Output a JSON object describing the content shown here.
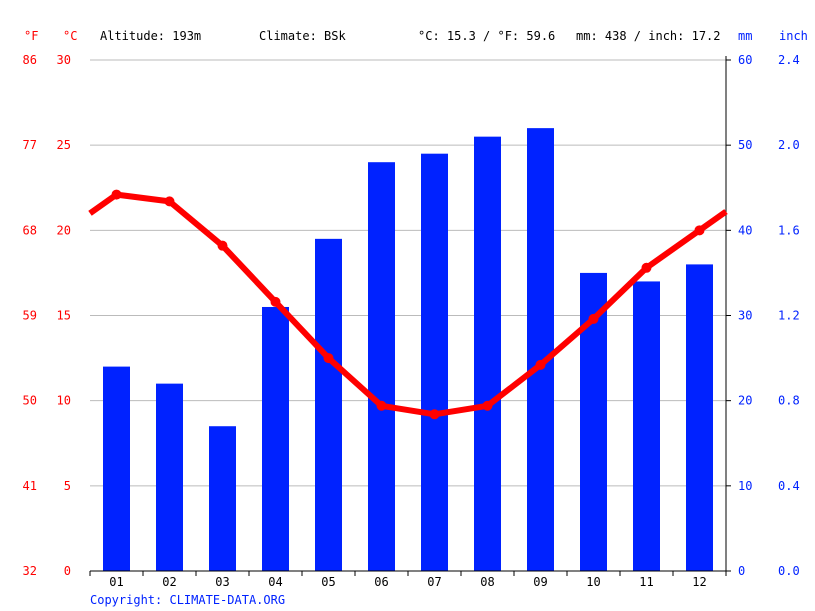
{
  "header": {
    "unit_f": "°F",
    "unit_c": "°C",
    "altitude": "Altitude: 193m",
    "climate": "Climate: BSk",
    "avg_temp": "°C: 15.3 / °F: 59.6",
    "precip_total": "mm: 438 / inch: 17.2",
    "unit_mm": "mm",
    "unit_inch": "inch"
  },
  "footer": {
    "copyright": "Copyright: CLIMATE-DATA.ORG"
  },
  "colors": {
    "temperature": "#ff0000",
    "precipitation": "#0022ff",
    "grid": "#bbbbbb",
    "axis": "#000000"
  },
  "chart_data": {
    "type": "bar",
    "categories": [
      "01",
      "02",
      "03",
      "04",
      "05",
      "06",
      "07",
      "08",
      "09",
      "10",
      "11",
      "12"
    ],
    "series": [
      {
        "type": "bar",
        "axis": "right",
        "values": [
          24,
          22,
          17,
          31,
          39,
          48,
          49,
          51,
          52,
          35,
          34,
          36
        ]
      },
      {
        "type": "line",
        "axis": "left",
        "values": [
          22.1,
          21.7,
          19.1,
          15.8,
          12.5,
          9.7,
          9.2,
          9.7,
          12.1,
          14.8,
          17.8,
          20.0
        ]
      }
    ],
    "line_ends": [
      21.0,
      21.1
    ],
    "left_axis": {
      "ylim": [
        0,
        30
      ],
      "ticks_c": [
        "0",
        "5",
        "10",
        "15",
        "20",
        "25",
        "30"
      ],
      "ticks_f": [
        "32",
        "41",
        "50",
        "59",
        "68",
        "77",
        "86"
      ]
    },
    "right_axis": {
      "ylim": [
        0,
        60
      ],
      "ticks_mm": [
        "0",
        "10",
        "20",
        "30",
        "40",
        "50",
        "60"
      ],
      "ticks_inch": [
        "0.0",
        "0.4",
        "0.8",
        "1.2",
        "1.6",
        "2.0",
        "2.4"
      ]
    },
    "grid": true
  }
}
